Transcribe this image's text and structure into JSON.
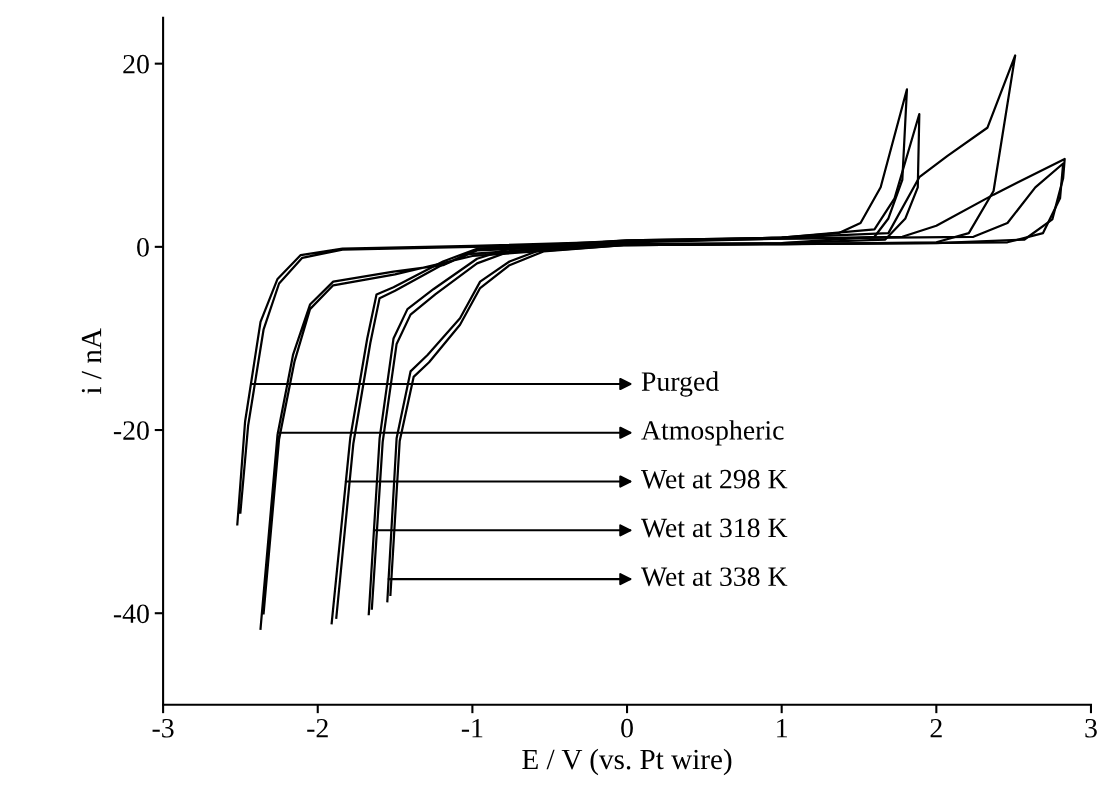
{
  "chart_data": {
    "type": "line",
    "xlabel": "E / V (vs. Pt wire)",
    "ylabel": "i / nA",
    "xlim": [
      -3,
      3
    ],
    "ylim": [
      -50,
      25
    ],
    "xticks": [
      -3,
      -2,
      -1,
      0,
      1,
      2,
      3
    ],
    "yticks": [
      -40,
      -20,
      0,
      20
    ],
    "grid": false,
    "legend": "bottom",
    "marker": "none",
    "line_style": "solid",
    "series": [
      {
        "name": "Purged",
        "color": "#000000",
        "x": [
          -2.52,
          -2.47,
          -2.37,
          -2.26,
          -2.11,
          -1.84,
          -1.0,
          0.0,
          1.0,
          1.69,
          1.89,
          2.07,
          2.33,
          2.51,
          2.37,
          2.21,
          2.0,
          1.0,
          0.0,
          -1.0,
          -1.84,
          -2.1,
          -2.25,
          -2.35,
          -2.45,
          -2.5
        ],
        "values": [
          -30.3,
          -19.1,
          -8.2,
          -3.5,
          -0.9,
          -0.2,
          0.1,
          0.6,
          1.0,
          1.5,
          7.6,
          9.9,
          13.0,
          20.9,
          6.1,
          1.5,
          0.5,
          0.3,
          0.2,
          0.0,
          -0.3,
          -1.2,
          -4.0,
          -9.0,
          -19.5,
          -29.0
        ]
      },
      {
        "name": "Atmospheric",
        "color": "#000000",
        "x": [
          -2.37,
          -2.26,
          -2.16,
          -2.05,
          -1.9,
          -1.51,
          -1.19,
          -1.03,
          0.0,
          1.0,
          1.78,
          2.0,
          2.37,
          2.83,
          2.82,
          2.75,
          2.57,
          2.0,
          1.0,
          0.0,
          -1.0,
          -1.5,
          -1.9,
          -2.05,
          -2.15,
          -2.25,
          -2.35
        ],
        "values": [
          -41.7,
          -20.5,
          -11.8,
          -6.3,
          -3.8,
          -2.7,
          -2.0,
          -0.8,
          0.5,
          0.9,
          1.1,
          2.3,
          5.7,
          9.6,
          7.5,
          3.0,
          0.8,
          0.4,
          0.3,
          0.2,
          -1.0,
          -3.0,
          -4.2,
          -6.8,
          -12.5,
          -21.0,
          -40.0
        ]
      },
      {
        "name": "Wet at 298 K",
        "color": "#000000",
        "x": [
          -1.91,
          -1.79,
          -1.68,
          -1.62,
          -1.51,
          -1.19,
          -0.97,
          0.0,
          1.0,
          1.37,
          1.51,
          1.64,
          1.81,
          1.78,
          1.69,
          1.6,
          1.0,
          0.0,
          -0.97,
          -1.2,
          -1.5,
          -1.6,
          -1.66,
          -1.77,
          -1.88
        ],
        "values": [
          -41.1,
          -20.9,
          -10.0,
          -5.2,
          -4.4,
          -1.6,
          -0.2,
          0.7,
          1.0,
          1.5,
          2.6,
          6.5,
          17.2,
          7.3,
          3.1,
          1.1,
          0.4,
          0.3,
          -0.4,
          -2.0,
          -4.8,
          -5.6,
          -10.5,
          -21.5,
          -40.5
        ]
      },
      {
        "name": "Wet at 318 K",
        "color": "#000000",
        "x": [
          -1.67,
          -1.6,
          -1.51,
          -1.42,
          -1.25,
          -0.97,
          -0.76,
          0.0,
          1.0,
          1.6,
          1.73,
          1.89,
          1.88,
          1.8,
          1.67,
          1.0,
          0.0,
          -0.76,
          -0.97,
          -1.24,
          -1.4,
          -1.49,
          -1.58,
          -1.65
        ],
        "values": [
          -40.1,
          -20.9,
          -10.0,
          -6.8,
          -4.6,
          -1.3,
          -0.2,
          0.7,
          1.0,
          1.9,
          5.3,
          14.5,
          6.5,
          3.1,
          0.8,
          0.4,
          0.3,
          -0.5,
          -1.8,
          -5.2,
          -7.4,
          -10.6,
          -21.3,
          -39.5
        ]
      },
      {
        "name": "Wet at 338 K",
        "color": "#000000",
        "x": [
          -1.55,
          -1.49,
          -1.4,
          -1.29,
          -1.08,
          -0.95,
          -0.76,
          -0.54,
          0.0,
          1.0,
          2.24,
          2.46,
          2.64,
          2.82,
          2.8,
          2.69,
          2.46,
          1.0,
          0.0,
          -0.54,
          -0.76,
          -0.95,
          -1.08,
          -1.28,
          -1.38,
          -1.47,
          -1.53
        ],
        "values": [
          -38.7,
          -20.9,
          -13.6,
          -11.8,
          -7.8,
          -3.8,
          -1.6,
          -0.2,
          0.6,
          0.9,
          1.1,
          2.6,
          6.5,
          9.1,
          5.3,
          1.5,
          0.5,
          0.3,
          0.2,
          -0.5,
          -2.0,
          -4.5,
          -8.5,
          -12.6,
          -14.2,
          -21.2,
          -38.0
        ]
      }
    ]
  }
}
